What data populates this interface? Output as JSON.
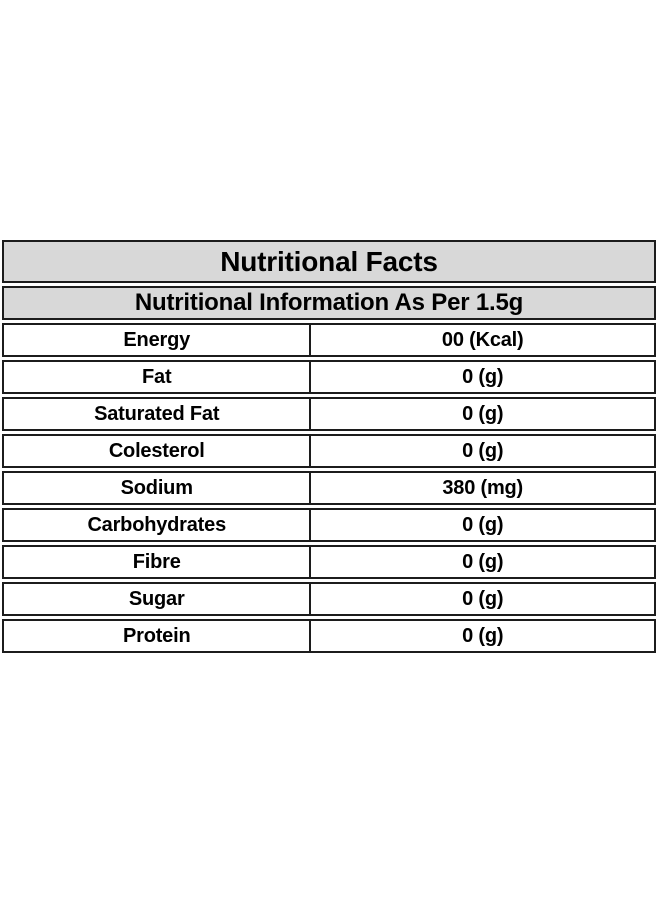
{
  "table": {
    "title": "Nutritional Facts",
    "subtitle": "Nutritional Information As Per 1.5g",
    "colors": {
      "header_bg": "#d8d8d8",
      "border": "#1c1c1c",
      "row_bg": "#ffffff",
      "text": "#000000",
      "page_bg": "#ffffff"
    },
    "rows": [
      {
        "label": "Energy",
        "value": "00 (Kcal)"
      },
      {
        "label": "Fat",
        "value": "0 (g)"
      },
      {
        "label": "Saturated Fat",
        "value": "0 (g)"
      },
      {
        "label": "Colesterol",
        "value": "0 (g)"
      },
      {
        "label": "Sodium",
        "value": "380 (mg)"
      },
      {
        "label": "Carbohydrates",
        "value": "0 (g)"
      },
      {
        "label": "Fibre",
        "value": "0 (g)"
      },
      {
        "label": "Sugar",
        "value": "0 (g)"
      },
      {
        "label": "Protein",
        "value": "0 (g)"
      }
    ]
  }
}
